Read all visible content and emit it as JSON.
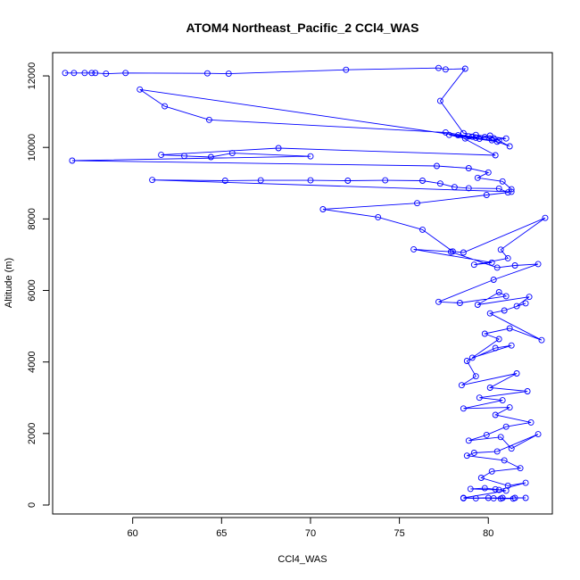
{
  "chart_data": {
    "type": "line",
    "title": "ATOM4 Northeast_Pacific_2 CCl4_WAS",
    "xlabel": "CCl4_WAS",
    "ylabel": "Altitude (m)",
    "xlim": [
      55.5,
      83.6
    ],
    "ylim": [
      -250,
      12650
    ],
    "x_ticks": [
      60,
      65,
      70,
      75,
      80
    ],
    "y_ticks": [
      0,
      2000,
      4000,
      6000,
      8000,
      10000,
      12000
    ],
    "grid": false,
    "legend": "none",
    "series_color": "#0000ff",
    "x": [
      56.2,
      56.7,
      57.3,
      57.7,
      57.9,
      58.5,
      59.6,
      64.2,
      65.4,
      72.0,
      77.2,
      77.6,
      78.7,
      77.3,
      78.6,
      79.3,
      81.0,
      80.2,
      60.4,
      61.8,
      64.3,
      77.6,
      79.1,
      79.8,
      81.2,
      80.6,
      80.3,
      78.9,
      79.5,
      80.1,
      80.5,
      77.8,
      78.7,
      79.3,
      78.3,
      80.4,
      68.2,
      61.6,
      62.9,
      64.4,
      65.6,
      70.0,
      56.6,
      77.1,
      78.9,
      80.0,
      79.4,
      80.8,
      81.3,
      81.3,
      61.1,
      65.2,
      67.2,
      70.0,
      72.1,
      74.2,
      76.3,
      77.3,
      78.1,
      78.9,
      80.6,
      81.1,
      79.9,
      76.0,
      70.7,
      73.8,
      76.3,
      78.0,
      78.6,
      83.2,
      80.7,
      81.1,
      79.2,
      80.2,
      75.8,
      77.9,
      80.5,
      81.5,
      82.8,
      80.3,
      77.2,
      78.4,
      81.0,
      80.6,
      79.4,
      82.3,
      81.6,
      82.1,
      80.9,
      80.1,
      83.0,
      81.2,
      79.8,
      80.6,
      79.1,
      81.3,
      80.4,
      78.8,
      79.3,
      78.5,
      81.6,
      80.1,
      82.2,
      79.5,
      80.8,
      78.6,
      81.2,
      80.4,
      82.4,
      81.0,
      79.9,
      78.9,
      80.7,
      81.3,
      82.8,
      80.5,
      79.2,
      78.8,
      80.9,
      81.8,
      80.2,
      79.6,
      81.1,
      82.1,
      80.6,
      79.0,
      79.8,
      80.4,
      81.0,
      78.6,
      80.3,
      81.4,
      80.8,
      78.6,
      79.3,
      80.0,
      80.7,
      81.5,
      82.1
    ],
    "y": [
      12080,
      12080,
      12080,
      12080,
      12080,
      12060,
      12080,
      12070,
      12060,
      12170,
      12220,
      12180,
      12200,
      11300,
      10400,
      10350,
      10250,
      10200,
      11620,
      11150,
      10770,
      10420,
      10300,
      10290,
      10030,
      10190,
      10260,
      10310,
      10240,
      10330,
      10160,
      10350,
      10250,
      10270,
      10340,
      9780,
      9980,
      9790,
      9760,
      9730,
      9840,
      9750,
      9630,
      9480,
      9420,
      9300,
      9150,
      9050,
      8830,
      8760,
      9090,
      9070,
      9080,
      9080,
      9070,
      9080,
      9070,
      8990,
      8890,
      8860,
      8850,
      8740,
      8670,
      8440,
      8270,
      8050,
      7700,
      7090,
      7060,
      8030,
      7140,
      6900,
      6720,
      6780,
      7150,
      7080,
      6640,
      6700,
      6740,
      6300,
      5680,
      5650,
      5840,
      5950,
      5600,
      5820,
      5560,
      5640,
      5440,
      5360,
      4610,
      4940,
      4790,
      4640,
      4120,
      4460,
      4390,
      4030,
      3600,
      3350,
      3680,
      3280,
      3180,
      3000,
      2930,
      2700,
      2730,
      2520,
      2310,
      2190,
      1960,
      1800,
      1900,
      1580,
      1980,
      1500,
      1460,
      1380,
      1250,
      1030,
      940,
      760,
      540,
      620,
      420,
      450,
      470,
      440,
      400,
      200,
      190,
      180,
      200,
      190,
      190,
      200,
      180,
      200,
      200
    ]
  }
}
